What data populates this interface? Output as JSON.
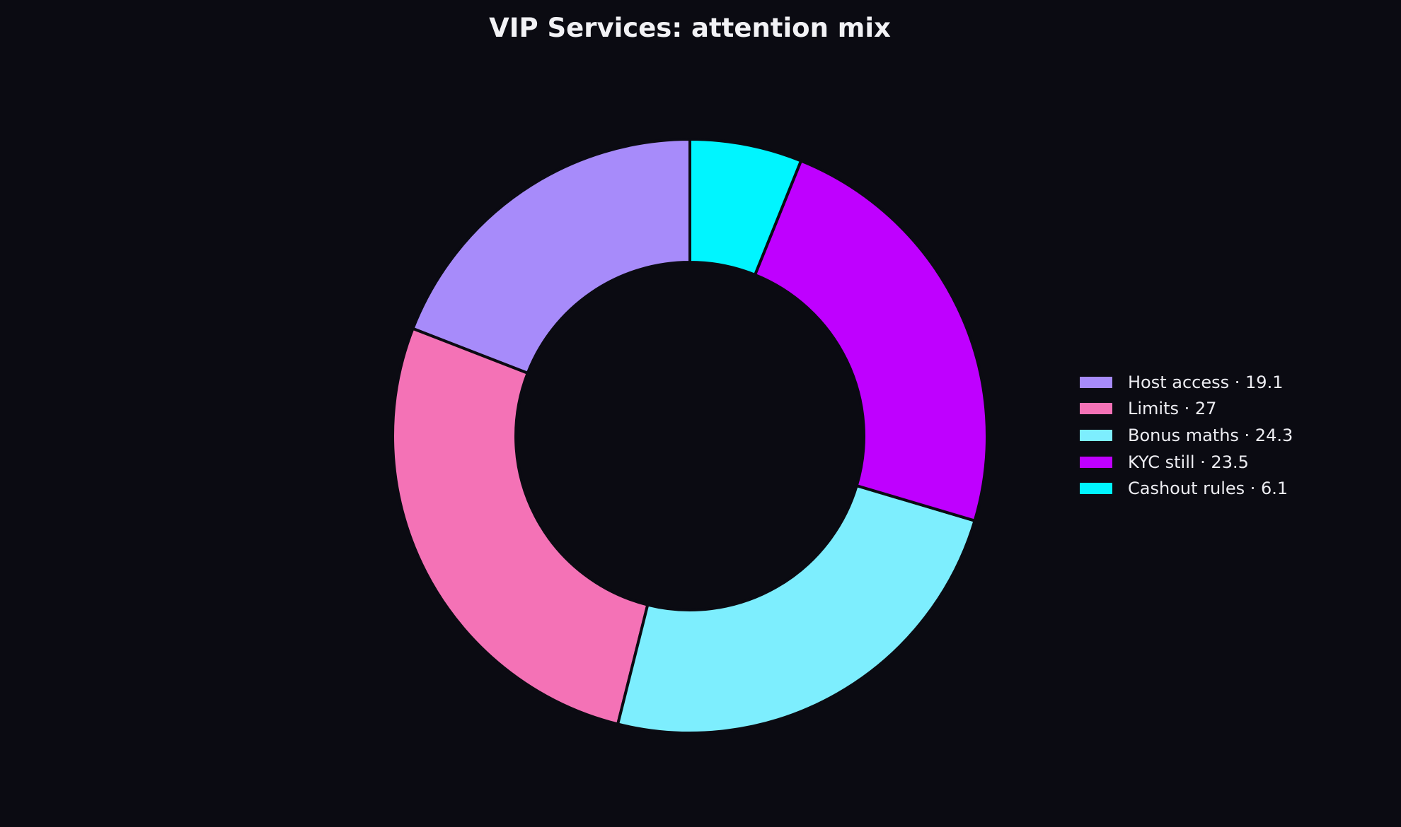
{
  "chart_data": {
    "type": "pie",
    "title": "VIP Services: attention mix",
    "donut": true,
    "start_angle": "top",
    "direction": "clockwise",
    "legend_position": "right",
    "slices": [
      {
        "label": "Host access",
        "value": 19.1,
        "legend_text": "Host access · 19.1",
        "color": "#a78bfa"
      },
      {
        "label": "Limits",
        "value": 27,
        "legend_text": "Limits · 27",
        "color": "#f472b6"
      },
      {
        "label": "Bonus maths",
        "value": 24.3,
        "legend_text": "Bonus maths · 24.3",
        "color": "#7deefe"
      },
      {
        "label": "KYC still",
        "value": 23.5,
        "legend_text": "KYC still · 23.5",
        "color": "#bf00ff"
      },
      {
        "label": "Cashout rules",
        "value": 6.1,
        "legend_text": "Cashout rules · 6.1",
        "color": "#00f5ff"
      }
    ]
  },
  "theme": {
    "background": "#0b0b12",
    "slice_edge": "#0b0b12",
    "text": "#ededf2"
  }
}
